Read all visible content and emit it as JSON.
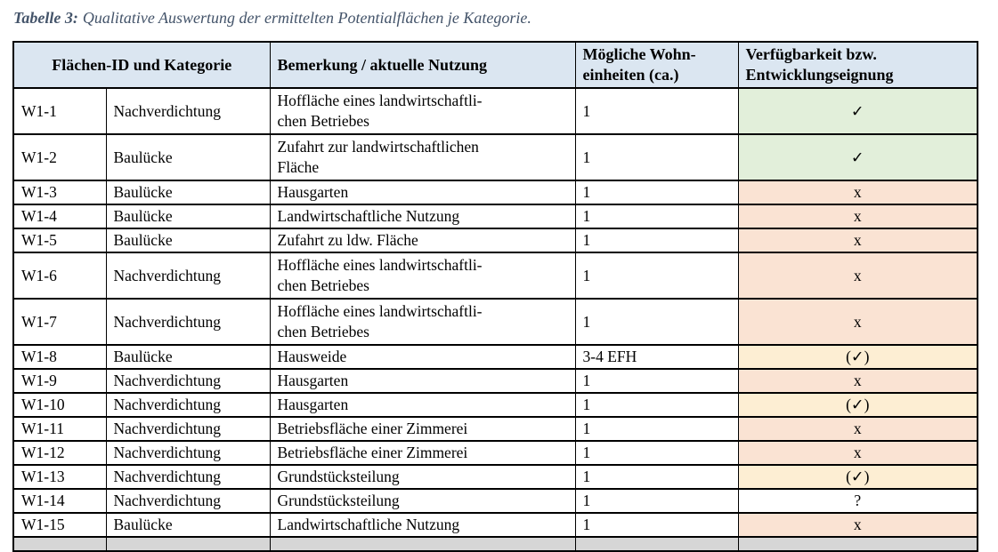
{
  "caption": {
    "label": "Tabelle 3:",
    "text": "Qualitative Auswertung der ermittelten Potentialflächen je Kategorie."
  },
  "colors": {
    "title": "#44546a",
    "header_bg": "#dbe6f1",
    "available_green": "#e2efda",
    "unavailable_red": "#fae3d3",
    "conditional_yellow": "#fdeed3",
    "partial_row_gray": "#d6d6d6",
    "border": "#000000"
  },
  "table": {
    "headers": {
      "id_kategorie": "Flächen-ID und Kategorie",
      "bemerkung": "Bemerkung / aktuelle Nutzung",
      "wohneinheiten": "Mögliche Wohn-\neinheiten (ca.)",
      "verfuegbarkeit": "Verfügbarkeit bzw.\nEntwicklungseignung"
    },
    "rows": [
      {
        "id": "W1-1",
        "kategorie": "Nachverdichtung",
        "bemerkung": "Hoffläche eines landwirtschaftli-\nchen Betriebes",
        "wohneinheiten": "1",
        "verfuegbarkeit": "✓",
        "status": "green",
        "tall": true
      },
      {
        "id": "W1-2",
        "kategorie": "Baulücke",
        "bemerkung": "Zufahrt zur landwirtschaftlichen\nFläche",
        "wohneinheiten": "1",
        "verfuegbarkeit": "✓",
        "status": "green",
        "tall": true
      },
      {
        "id": "W1-3",
        "kategorie": "Baulücke",
        "bemerkung": "Hausgarten",
        "wohneinheiten": "1",
        "verfuegbarkeit": "x",
        "status": "red",
        "tall": false
      },
      {
        "id": "W1-4",
        "kategorie": "Baulücke",
        "bemerkung": "Landwirtschaftliche Nutzung",
        "wohneinheiten": "1",
        "verfuegbarkeit": "x",
        "status": "red",
        "tall": false
      },
      {
        "id": "W1-5",
        "kategorie": "Baulücke",
        "bemerkung": "Zufahrt zu ldw. Fläche",
        "wohneinheiten": "1",
        "verfuegbarkeit": "x",
        "status": "red",
        "tall": false
      },
      {
        "id": "W1-6",
        "kategorie": "Nachverdichtung",
        "bemerkung": "Hoffläche eines landwirtschaftli-\nchen Betriebes",
        "wohneinheiten": "1",
        "verfuegbarkeit": "x",
        "status": "red",
        "tall": true
      },
      {
        "id": "W1-7",
        "kategorie": "Nachverdichtung",
        "bemerkung": "Hoffläche eines landwirtschaftli-\nchen Betriebes",
        "wohneinheiten": "1",
        "verfuegbarkeit": "x",
        "status": "red",
        "tall": true
      },
      {
        "id": "W1-8",
        "kategorie": "Baulücke",
        "bemerkung": "Hausweide",
        "wohneinheiten": "3-4 EFH",
        "verfuegbarkeit": "(✓)",
        "status": "yellow",
        "tall": false
      },
      {
        "id": "W1-9",
        "kategorie": "Nachverdichtung",
        "bemerkung": "Hausgarten",
        "wohneinheiten": "1",
        "verfuegbarkeit": "x",
        "status": "red",
        "tall": false
      },
      {
        "id": "W1-10",
        "kategorie": "Nachverdichtung",
        "bemerkung": "Hausgarten",
        "wohneinheiten": "1",
        "verfuegbarkeit": "(✓)",
        "status": "yellow",
        "tall": false
      },
      {
        "id": "W1-11",
        "kategorie": "Nachverdichtung",
        "bemerkung": "Betriebsfläche einer Zimmerei",
        "wohneinheiten": "1",
        "verfuegbarkeit": "x",
        "status": "red",
        "tall": false
      },
      {
        "id": "W1-12",
        "kategorie": "Nachverdichtung",
        "bemerkung": "Betriebsfläche einer Zimmerei",
        "wohneinheiten": "1",
        "verfuegbarkeit": "x",
        "status": "red",
        "tall": false
      },
      {
        "id": "W1-13",
        "kategorie": "Nachverdichtung",
        "bemerkung": "Grundstücksteilung",
        "wohneinheiten": "1",
        "verfuegbarkeit": "(✓)",
        "status": "yellow",
        "tall": false
      },
      {
        "id": "W1-14",
        "kategorie": "Nachverdichtung",
        "bemerkung": "Grundstücksteilung",
        "wohneinheiten": "1",
        "verfuegbarkeit": "?",
        "status": "white",
        "tall": false
      },
      {
        "id": "W1-15",
        "kategorie": "Baulücke",
        "bemerkung": "Landwirtschaftliche Nutzung",
        "wohneinheiten": "1",
        "verfuegbarkeit": "x",
        "status": "red",
        "tall": false
      }
    ],
    "partial_row_visible": true
  }
}
